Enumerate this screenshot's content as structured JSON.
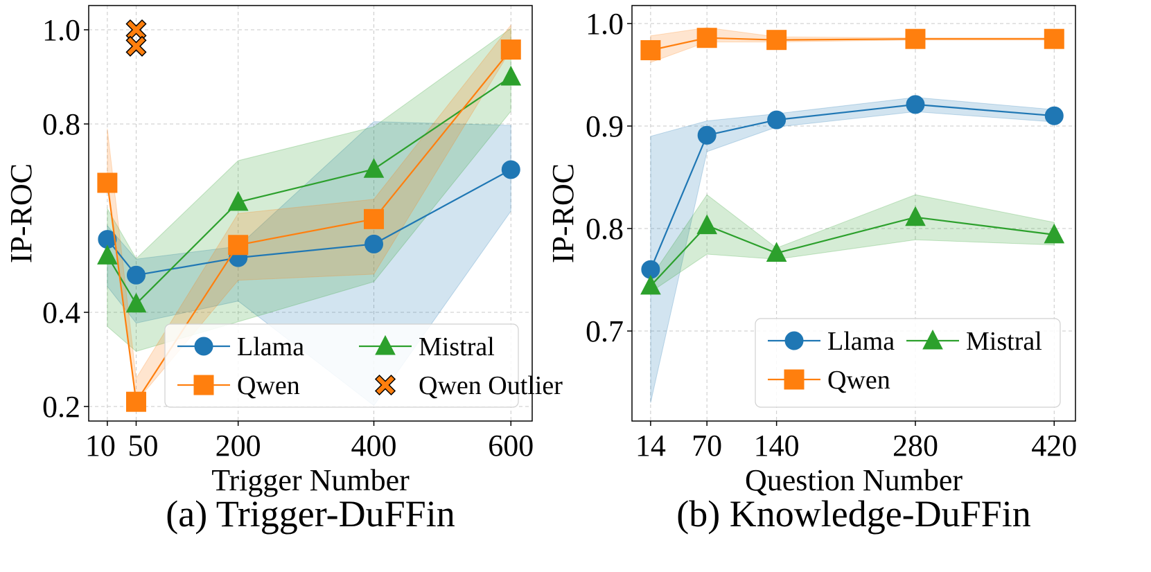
{
  "chart_data": [
    {
      "type": "line",
      "caption": "(a) Trigger-DuFFin",
      "xlabel": "Trigger Number",
      "ylabel": "IP-ROC",
      "x": [
        10,
        50,
        200,
        400,
        600
      ],
      "xtick_labels": [
        "10",
        "50",
        "200",
        "400",
        "600"
      ],
      "yticks": [
        0.2,
        0.4,
        0.8,
        1.0
      ],
      "ytick_labels": [
        "0.2",
        "0.4",
        "0.8",
        "1.0"
      ],
      "grid": true,
      "legend": "lower-right",
      "series": [
        {
          "name": "Llama",
          "color": "#1f77b4",
          "marker": "circle",
          "values": [
            0.555,
            0.479,
            0.516,
            0.545,
            0.703
          ],
          "lower": [
            0.455,
            0.377,
            0.424,
            0.202,
            0.615
          ],
          "upper": [
            0.584,
            0.513,
            0.54,
            0.805,
            0.797
          ]
        },
        {
          "name": "Mistral",
          "color": "#2ca02c",
          "marker": "triangle",
          "values": [
            0.52,
            0.418,
            0.634,
            0.704,
            0.9
          ],
          "lower": [
            0.37,
            0.317,
            0.38,
            0.465,
            0.827
          ],
          "upper": [
            0.62,
            0.514,
            0.722,
            0.794,
            1.003
          ]
        },
        {
          "name": "Qwen",
          "color": "#ff7f0e",
          "marker": "square",
          "values": [
            0.675,
            0.21,
            0.543,
            0.598,
            0.958
          ],
          "lower": [
            0.675,
            0.21,
            0.468,
            0.481,
            0.958
          ],
          "upper": [
            0.79,
            0.26,
            0.61,
            0.64,
            1.01
          ]
        }
      ],
      "outliers": {
        "name": "Qwen Outlier",
        "color": "#ff7f0e",
        "marker": "x-filled",
        "x": [
          50,
          50
        ],
        "values": [
          1.0,
          0.965
        ]
      }
    },
    {
      "type": "line",
      "caption": "(b) Knowledge-DuFFin",
      "xlabel": "Question Number",
      "ylabel": "IP-ROC",
      "x": [
        14,
        70,
        140,
        280,
        420
      ],
      "xtick_labels": [
        "14",
        "70",
        "140",
        "280",
        "420"
      ],
      "yticks": [
        0.7,
        0.8,
        0.9,
        1.0
      ],
      "ytick_labels": [
        "0.7",
        "0.8",
        "0.9",
        "1.0"
      ],
      "grid": true,
      "legend": "lower-right",
      "series": [
        {
          "name": "Llama",
          "color": "#1f77b4",
          "marker": "circle",
          "values": [
            0.76,
            0.891,
            0.906,
            0.921,
            0.91
          ],
          "lower": [
            0.63,
            0.875,
            0.899,
            0.914,
            0.904
          ],
          "upper": [
            0.89,
            0.905,
            0.912,
            0.928,
            0.916
          ]
        },
        {
          "name": "Mistral",
          "color": "#2ca02c",
          "marker": "triangle",
          "values": [
            0.744,
            0.803,
            0.776,
            0.811,
            0.794
          ],
          "lower": [
            0.738,
            0.775,
            0.77,
            0.789,
            0.784
          ],
          "upper": [
            0.752,
            0.833,
            0.781,
            0.833,
            0.806
          ]
        },
        {
          "name": "Qwen",
          "color": "#ff7f0e",
          "marker": "square",
          "values": [
            0.974,
            0.986,
            0.984,
            0.985,
            0.985
          ],
          "lower": [
            0.962,
            0.982,
            0.982,
            0.984,
            0.984
          ],
          "upper": [
            0.988,
            0.996,
            0.987,
            0.986,
            0.986
          ]
        }
      ]
    }
  ]
}
